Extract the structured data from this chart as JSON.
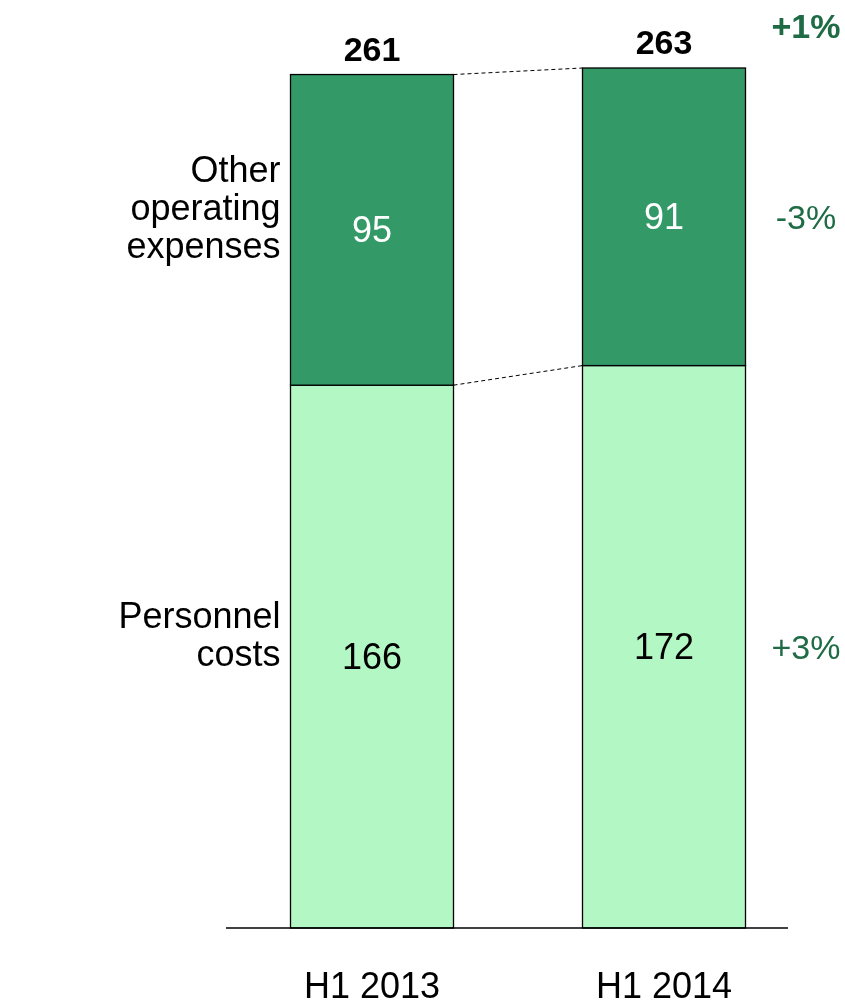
{
  "chart_data": {
    "type": "bar",
    "stacked": true,
    "data_labels": true,
    "categories": [
      "H1 2013",
      "H1 2014"
    ],
    "series": [
      {
        "name": "Personnel costs",
        "color": "#b3f7c4",
        "values": [
          166,
          172
        ]
      },
      {
        "name": "Other operating expenses",
        "color": "#339966",
        "values": [
          95,
          91
        ]
      }
    ],
    "totals": [
      "261",
      "263"
    ],
    "annotations": [
      "+1%",
      "-3%",
      "+3%"
    ]
  }
}
